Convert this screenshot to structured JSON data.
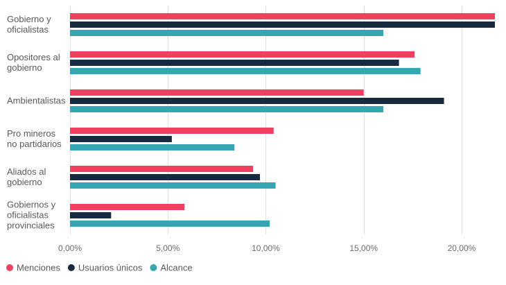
{
  "chart_data": {
    "type": "bar",
    "orientation": "horizontal",
    "categories": [
      [
        "Gobierno y",
        "oficialistas"
      ],
      [
        "Opositores al",
        "gobierno"
      ],
      [
        "Ambientalistas"
      ],
      [
        "Pro mineros",
        "no partidarios"
      ],
      [
        "Aliados al",
        "gobierno"
      ],
      [
        "Gobiernos y",
        "oficialistas",
        "provinciales"
      ]
    ],
    "series": [
      {
        "name": "Menciones",
        "color": "#f0405f",
        "values": [
          21.7,
          17.6,
          15.0,
          10.4,
          9.35,
          5.85
        ]
      },
      {
        "name": "Usuarios únicos",
        "color": "#172a40",
        "values": [
          21.7,
          16.8,
          19.1,
          5.2,
          9.7,
          2.1
        ]
      },
      {
        "name": "Alcance",
        "color": "#35a6b2",
        "values": [
          16.0,
          17.9,
          16.0,
          8.4,
          10.5,
          10.2
        ]
      }
    ],
    "xlim": [
      0,
      21.7
    ],
    "xticks": [
      0,
      5,
      10,
      15,
      20
    ],
    "xtick_labels": [
      "0,00%",
      "5,00%",
      "10,00%",
      "15,00%",
      "20,00%"
    ],
    "grid": true,
    "legend_position": "bottom-left"
  }
}
